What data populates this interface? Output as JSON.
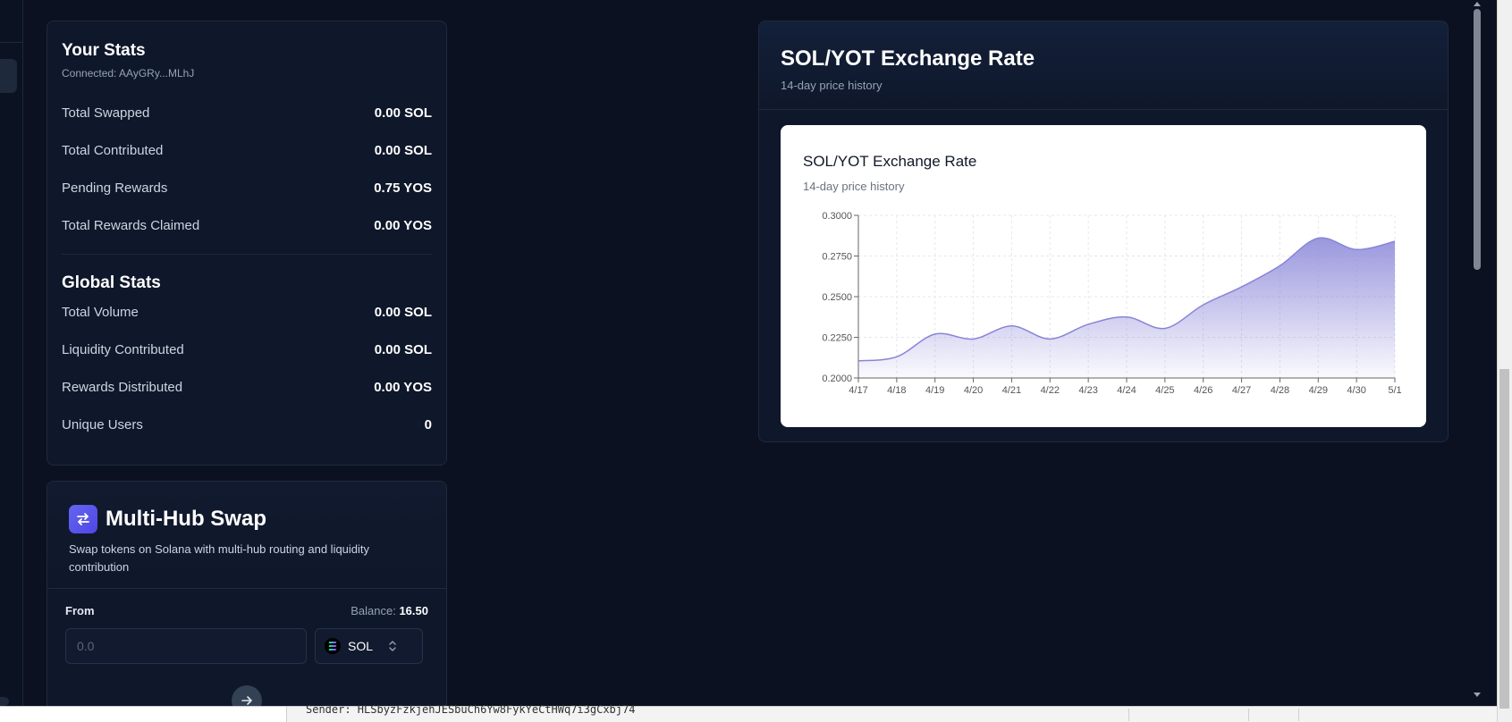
{
  "your_stats": {
    "title": "Your Stats",
    "connected": "Connected: AAyGRy...MLhJ",
    "rows": [
      {
        "label": "Total Swapped",
        "value": "0.00 SOL"
      },
      {
        "label": "Total Contributed",
        "value": "0.00 SOL"
      },
      {
        "label": "Pending Rewards",
        "value": "0.75 YOS"
      },
      {
        "label": "Total Rewards Claimed",
        "value": "0.00 YOS"
      }
    ]
  },
  "global_stats": {
    "title": "Global Stats",
    "rows": [
      {
        "label": "Total Volume",
        "value": "0.00 SOL"
      },
      {
        "label": "Liquidity Contributed",
        "value": "0.00 SOL"
      },
      {
        "label": "Rewards Distributed",
        "value": "0.00 YOS"
      },
      {
        "label": "Unique Users",
        "value": "0"
      }
    ]
  },
  "swap": {
    "title": "Multi-Hub Swap",
    "description": "Swap tokens on Solana with multi-hub routing and liquidity contribution",
    "from_label": "From",
    "balance_label": "Balance:",
    "balance_value": "16.50",
    "amount_placeholder": "0.0",
    "token": "SOL"
  },
  "rate_card": {
    "title": "SOL/YOT Exchange Rate",
    "subtitle": "14-day price history"
  },
  "chart_data": {
    "type": "area",
    "title": "SOL/YOT Exchange Rate",
    "subtitle": "14-day price history",
    "categories": [
      "4/17",
      "4/18",
      "4/19",
      "4/20",
      "4/21",
      "4/22",
      "4/23",
      "4/24",
      "4/25",
      "4/26",
      "4/27",
      "4/28",
      "4/29",
      "4/30",
      "5/1"
    ],
    "values": [
      0.2105,
      0.213,
      0.227,
      0.224,
      0.232,
      0.224,
      0.233,
      0.2375,
      0.2305,
      0.245,
      0.256,
      0.269,
      0.286,
      0.279,
      0.284
    ],
    "ylim": [
      0.2,
      0.3
    ],
    "yticks": [
      "0.2000",
      "0.2250",
      "0.2500",
      "0.2750",
      "0.3000"
    ],
    "ytick_values": [
      0.2,
      0.225,
      0.25,
      0.275,
      0.3
    ],
    "grid": true,
    "color": "#8884d8"
  },
  "console": {
    "text": "Sender: HLSbyzFzkjehJESbuCh6Yw8FykYeCtHWq7i3gCxbj74"
  }
}
